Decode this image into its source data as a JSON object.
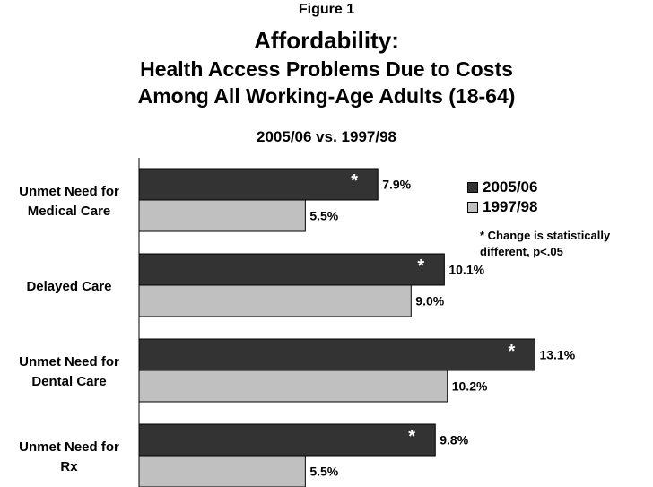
{
  "figure_label": "Figure 1",
  "title": "Affordability:",
  "subtitle_line1": "Health Access Problems Due to Costs",
  "subtitle_line2": "Among All Working-Age Adults (18-64)",
  "subtitle_line3": "2005/06 vs. 1997/98",
  "legend": {
    "items": [
      {
        "label": "2005/06",
        "color": "#333333"
      },
      {
        "label": "1997/98",
        "color": "#c0c0c0"
      }
    ],
    "note_line1": "* Change is statistically",
    "note_line2": "different, p<.05"
  },
  "chart_data": {
    "type": "bar",
    "orientation": "horizontal",
    "categories": [
      [
        "Unmet Need for",
        "Medical Care"
      ],
      [
        "Delayed Care"
      ],
      [
        "Unmet Need for",
        "Dental Care"
      ],
      [
        "Unmet Need for",
        "Rx"
      ]
    ],
    "series": [
      {
        "name": "2005/06",
        "values": [
          7.9,
          10.1,
          13.1,
          9.8
        ],
        "labels": [
          "7.9%",
          "10.1%",
          "13.1%",
          "9.8%"
        ],
        "significant": [
          true,
          true,
          true,
          true
        ],
        "color": "#333333"
      },
      {
        "name": "1997/98",
        "values": [
          5.5,
          9.0,
          10.2,
          5.5
        ],
        "labels": [
          "5.5%",
          "9.0%",
          "10.2%",
          "5.5%"
        ],
        "color": "#c0c0c0"
      }
    ],
    "significance_marker": "*",
    "xlim": [
      0,
      14
    ],
    "grid": false,
    "legend_position": "right"
  }
}
